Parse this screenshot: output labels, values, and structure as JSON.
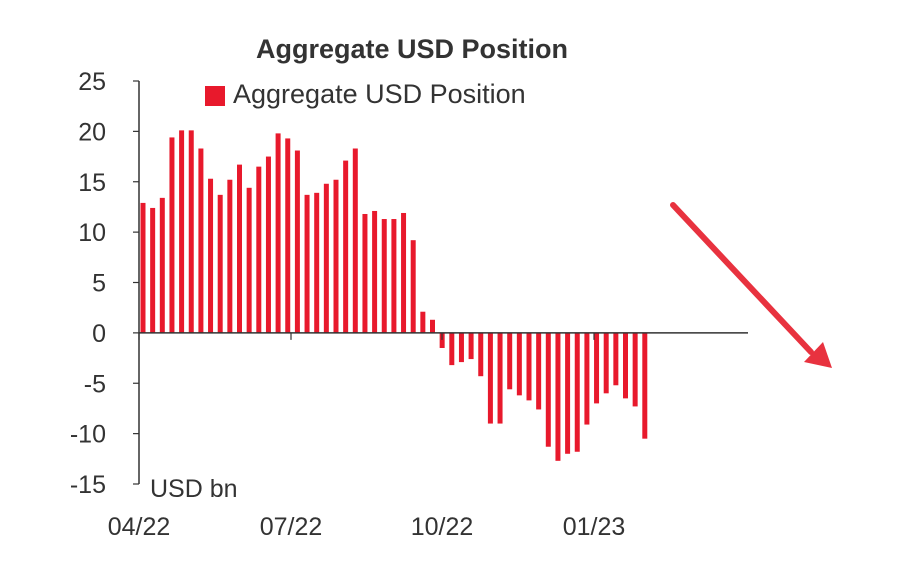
{
  "chart_data": {
    "type": "bar",
    "title": "Aggregate USD Position",
    "ylabel": "USD bn",
    "xlabel": "",
    "ylim": [
      -15,
      25
    ],
    "yticks": [
      25,
      20,
      15,
      10,
      5,
      0,
      -5,
      -10,
      -15
    ],
    "xtick_labels": [
      "04/22",
      "07/22",
      "10/22",
      "01/23"
    ],
    "legend": {
      "position": "top",
      "entries": [
        "Aggregate USD Position"
      ]
    },
    "grid": false,
    "colors": {
      "bar": "#e8192c",
      "axis": "#333333",
      "arrow": "#e8323f"
    },
    "series": [
      {
        "name": "Aggregate USD Position",
        "values": [
          12.9,
          12.4,
          13.4,
          19.4,
          20.1,
          20.1,
          18.3,
          15.3,
          13.7,
          15.2,
          16.7,
          14.4,
          16.5,
          17.5,
          19.8,
          19.3,
          18.1,
          13.7,
          13.9,
          14.8,
          15.2,
          17.1,
          18.3,
          11.8,
          12.1,
          11.3,
          11.3,
          11.9,
          9.2,
          2.1,
          1.3,
          -1.5,
          -3.2,
          -2.9,
          -2.6,
          -4.3,
          -9.0,
          -9.0,
          -5.6,
          -6.2,
          -6.7,
          -7.6,
          -11.3,
          -12.7,
          -12.0,
          -11.8,
          -9.1,
          -7.0,
          -6.0,
          -5.2,
          -6.5,
          -7.3,
          -10.5
        ]
      }
    ],
    "annotations": [
      {
        "type": "arrow",
        "direction": "down-right"
      }
    ]
  }
}
